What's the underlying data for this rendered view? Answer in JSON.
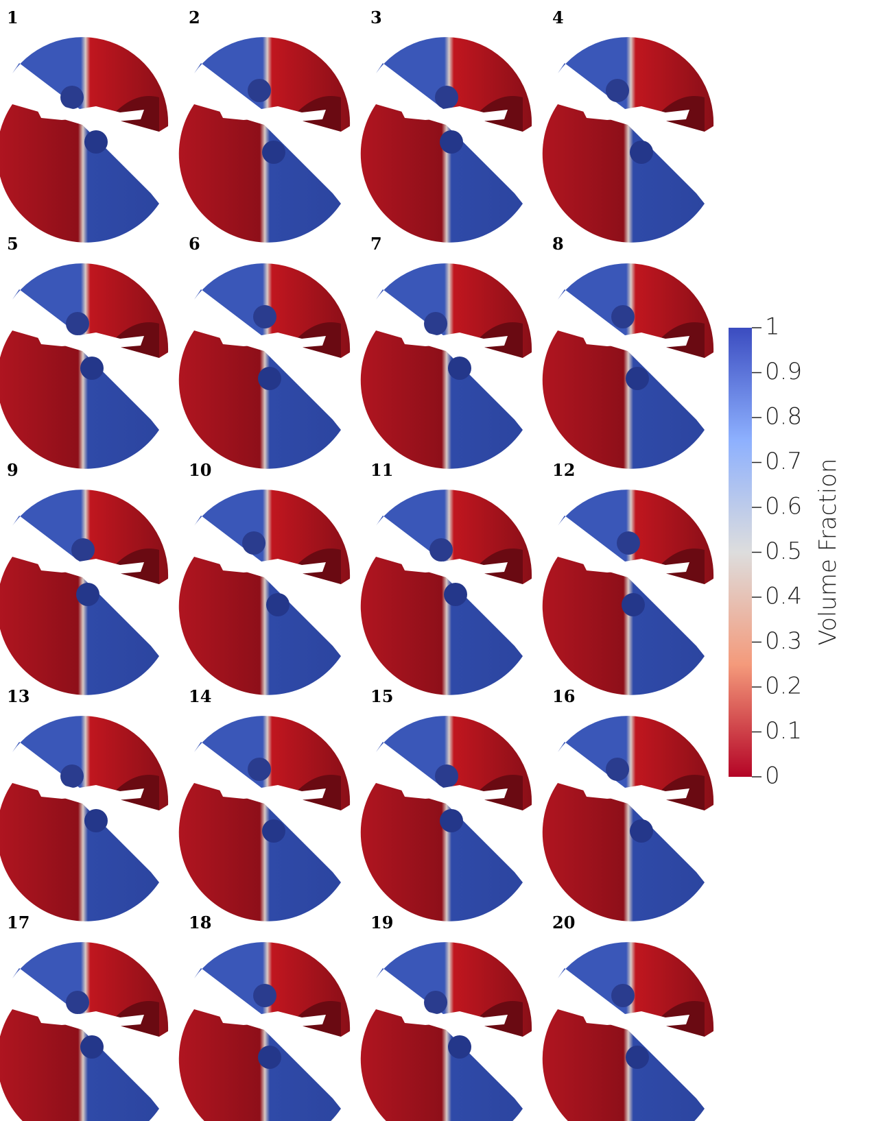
{
  "panels": [
    "1",
    "2",
    "3",
    "4",
    "5",
    "6",
    "7",
    "8",
    "9",
    "10",
    "11",
    "12",
    "13",
    "14",
    "15",
    "16",
    "17",
    "18",
    "19",
    "20"
  ],
  "colorbar": {
    "label": "Volume Fraction",
    "lim": [
      0,
      1
    ],
    "ticks": [
      0,
      0.1,
      0.2,
      0.3,
      0.4,
      0.5,
      0.6,
      0.7,
      0.8,
      0.9,
      1
    ]
  }
}
